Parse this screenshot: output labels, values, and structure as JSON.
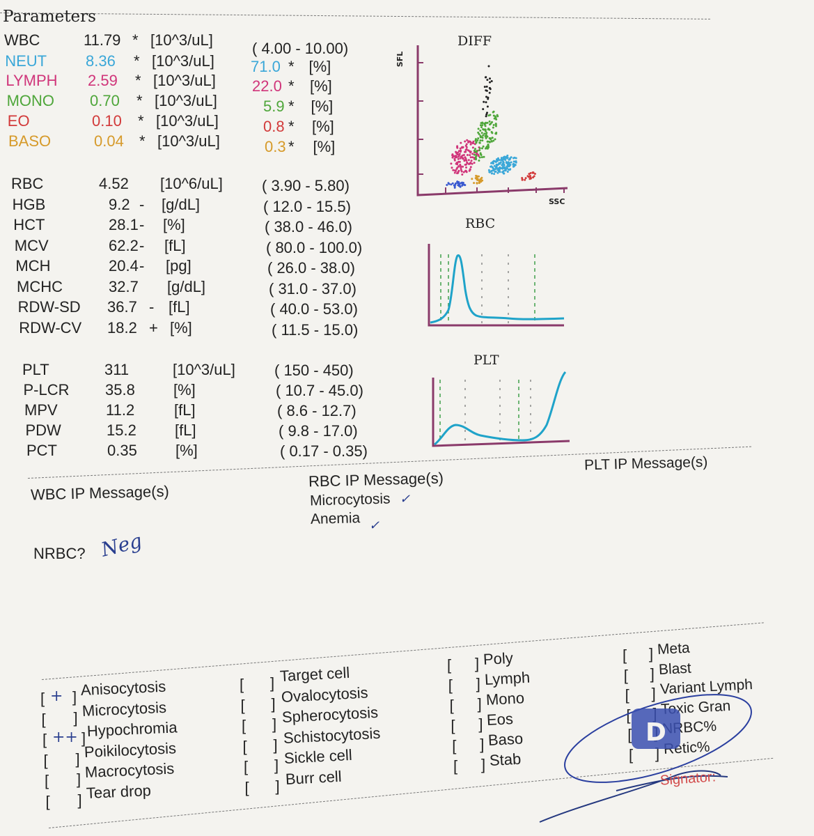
{
  "header": {
    "title": "Parameters"
  },
  "wbc_rows": [
    {
      "name": "WBC",
      "value": "11.79",
      "flag": "*",
      "unit": "[10^3/uL]",
      "ref": "( 4.00 - 10.00)",
      "color": "#222222"
    },
    {
      "name": "NEUT",
      "value": "8.36",
      "flag": "*",
      "unit": "[10^3/uL]",
      "pct": "71.0",
      "pflag": "*",
      "punit": "[%]",
      "color": "#3aa7d8"
    },
    {
      "name": "LYMPH",
      "value": "2.59",
      "flag": "*",
      "unit": "[10^3/uL]",
      "pct": "22.0",
      "pflag": "*",
      "punit": "[%]",
      "color": "#d0357a"
    },
    {
      "name": "MONO",
      "value": "0.70",
      "flag": "*",
      "unit": "[10^3/uL]",
      "pct": "5.9",
      "pflag": "*",
      "punit": "[%]",
      "color": "#4ea63a"
    },
    {
      "name": "EO",
      "value": "0.10",
      "flag": "*",
      "unit": "[10^3/uL]",
      "pct": "0.8",
      "pflag": "*",
      "punit": "[%]",
      "color": "#d23a3a"
    },
    {
      "name": "BASO",
      "value": "0.04",
      "flag": "*",
      "unit": "[10^3/uL]",
      "pct": "0.3",
      "pflag": "*",
      "punit": "[%]",
      "color": "#d69a2a"
    }
  ],
  "rbc_rows": [
    {
      "name": "RBC",
      "value": "4.52",
      "flag": "",
      "unit": "[10^6/uL]",
      "ref": "( 3.90 -  5.80)"
    },
    {
      "name": "HGB",
      "value": "9.2",
      "flag": "-",
      "unit": "[g/dL]",
      "ref": "( 12.0 -  15.5)"
    },
    {
      "name": "HCT",
      "value": "28.1",
      "flag": "-",
      "unit": "[%]",
      "ref": "( 38.0 -  46.0)"
    },
    {
      "name": "MCV",
      "value": "62.2",
      "flag": "-",
      "unit": "[fL]",
      "ref": "( 80.0 - 100.0)"
    },
    {
      "name": "MCH",
      "value": "20.4",
      "flag": "-",
      "unit": "[pg]",
      "ref": "( 26.0 -  38.0)"
    },
    {
      "name": "MCHC",
      "value": "32.7",
      "flag": "",
      "unit": "[g/dL]",
      "ref": "( 31.0 -  37.0)"
    },
    {
      "name": "RDW-SD",
      "value": "36.7",
      "flag": "-",
      "unit": "[fL]",
      "ref": "( 40.0 -  53.0)"
    },
    {
      "name": "RDW-CV",
      "value": "18.2",
      "flag": "+",
      "unit": "[%]",
      "ref": "( 11.5 -  15.0)"
    }
  ],
  "plt_rows": [
    {
      "name": "PLT",
      "value": "311",
      "unit": "[10^3/uL]",
      "ref": "(  150 -   450)"
    },
    {
      "name": "P-LCR",
      "value": "35.8",
      "unit": "[%]",
      "ref": "( 10.7 -  45.0)"
    },
    {
      "name": "MPV",
      "value": "11.2",
      "unit": "[fL]",
      "ref": "(  8.6 -  12.7)"
    },
    {
      "name": "PDW",
      "value": "15.2",
      "unit": "[fL]",
      "ref": "(  9.8 -  17.0)"
    },
    {
      "name": "PCT",
      "value": "0.35",
      "unit": "[%]",
      "ref": "( 0.17 -  0.35)"
    }
  ],
  "charts": {
    "diff": {
      "title": "DIFF",
      "y_label": "SFL",
      "x_label": "SSC"
    },
    "rbc": {
      "title": "RBC"
    },
    "plt": {
      "title": "PLT"
    }
  },
  "messages": {
    "wbc_title": "WBC IP Message(s)",
    "rbc_title": "RBC IP Message(s)",
    "rbc_items": [
      "Microcytosis",
      "Anemia"
    ],
    "plt_title": "PLT IP Message(s)",
    "nrbc_label": "NRBC?",
    "nrbc_hand": "Neg"
  },
  "morphology": {
    "col1": [
      {
        "mark": "+",
        "label": "Anisocytosis"
      },
      {
        "mark": "",
        "label": "Microcytosis"
      },
      {
        "mark": "++",
        "label": "Hypochromia"
      },
      {
        "mark": "",
        "label": "Poikilocytosis"
      },
      {
        "mark": "",
        "label": "Macrocytosis"
      },
      {
        "mark": "",
        "label": "Tear drop"
      }
    ],
    "col2": [
      "Target cell",
      "Ovalocytosis",
      "Spherocytosis",
      "Schistocytosis",
      "Sickle cell",
      "Burr cell"
    ],
    "col3": [
      "Poly",
      "Lymph",
      "Mono",
      "Eos",
      "Baso",
      "Stab"
    ],
    "col4": [
      "Meta",
      "Blast",
      "Variant Lymph",
      "Toxic Gran",
      "NRBC%",
      "Retic%"
    ]
  },
  "signature": {
    "label": "Signator:"
  },
  "colors": {
    "neut": "#3aa7d8",
    "lymph": "#d0357a",
    "mono": "#4ea63a",
    "eo": "#d23a3a",
    "baso": "#d69a2a",
    "axis": "#8a3a6a",
    "curve": "#1fa3c9",
    "guide": "#3fa04a"
  }
}
